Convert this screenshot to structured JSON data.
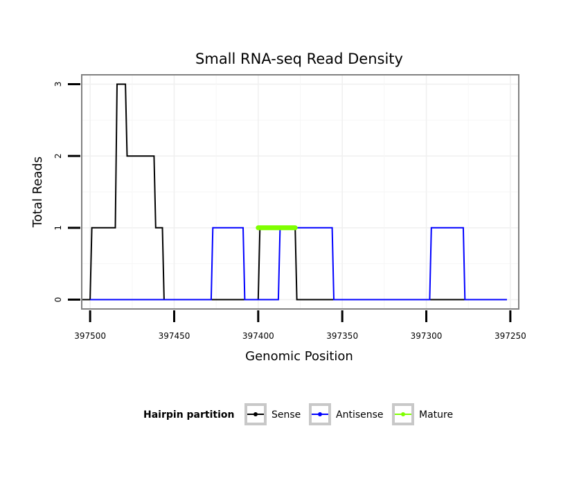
{
  "chart_data": {
    "type": "line",
    "title": "Small RNA-seq Read Density",
    "xlabel": "Genomic Position",
    "ylabel": "Total Reads",
    "x_reversed": true,
    "xlim": [
      397505,
      397245
    ],
    "ylim": [
      -0.13,
      3.13
    ],
    "x_ticks": [
      397500,
      397450,
      397400,
      397350,
      397300,
      397250
    ],
    "x_tick_labels": [
      "397500",
      "397450",
      "397400",
      "397350",
      "397300",
      "397250"
    ],
    "y_ticks": [
      0,
      1,
      2,
      3
    ],
    "y_tick_labels": [
      "0",
      "1",
      "2",
      "3"
    ],
    "grid": true,
    "legend": {
      "title": "Hairpin partition",
      "position": "bottom",
      "entries": [
        "Sense",
        "Antisense",
        "Mature"
      ]
    },
    "series": [
      {
        "name": "Sense",
        "color": "#000000",
        "x": [
          397505,
          397500,
          397499,
          397485,
          397484,
          397479,
          397478,
          397462,
          397461,
          397457,
          397456,
          397400,
          397399,
          397378,
          397377,
          397258,
          397252
        ],
        "y": [
          0,
          0,
          1,
          1,
          3,
          3,
          2,
          2,
          1,
          1,
          0,
          0,
          1,
          1,
          0,
          0,
          0
        ]
      },
      {
        "name": "Antisense",
        "color": "#0000ff",
        "x": [
          397500,
          397428,
          397427,
          397409,
          397408,
          397388,
          397387,
          397373,
          397372,
          397356,
          397355,
          397298,
          397297,
          397278,
          397277,
          397252
        ],
        "y": [
          0,
          0,
          1,
          1,
          0,
          0,
          1,
          1,
          1,
          1,
          0,
          0,
          1,
          1,
          0,
          0
        ]
      },
      {
        "name": "Mature",
        "color": "#7fff00",
        "x": [
          397400,
          397378
        ],
        "y": [
          1,
          1
        ]
      }
    ]
  }
}
